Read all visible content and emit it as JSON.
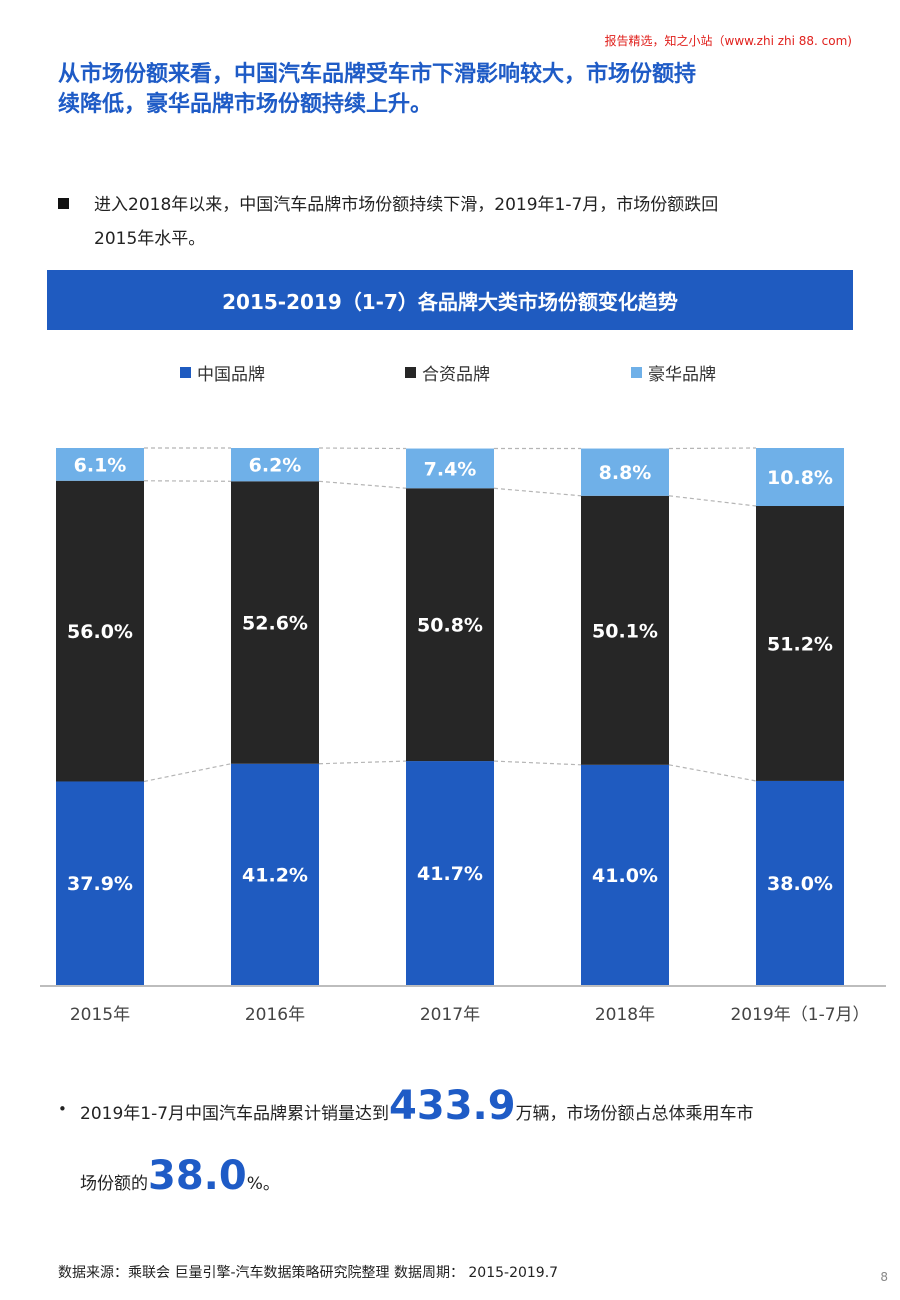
{
  "watermark": "报告精选，知之小站（www.zhi zhi 88. com)",
  "headline": {
    "line1": "从市场份额来看，中国汽车品牌受车市下滑影响较大，市场份额持",
    "line2": "续降低，豪华品牌市场份额持续上升。"
  },
  "bullet1": {
    "line1": "进入2018年以来，中国汽车品牌市场份额持续下滑，2019年1-7月，市场份额跌回",
    "line2": "2015年水平。"
  },
  "chart_data": {
    "type": "bar",
    "stacked": true,
    "title": "2015-2019（1-7）各品牌大类市场份额变化趋势",
    "categories": [
      "2015年",
      "2016年",
      "2017年",
      "2018年",
      "2019年（1-7月）"
    ],
    "series": [
      {
        "name": "中国品牌",
        "color": "#1f5bc0",
        "values": [
          37.9,
          41.2,
          41.7,
          41.0,
          38.0
        ],
        "labels": [
          "37.9%",
          "41.2%",
          "41.7%",
          "41.0%",
          "38.0%"
        ]
      },
      {
        "name": "合资品牌",
        "color": "#262626",
        "values": [
          56.0,
          52.6,
          50.8,
          50.1,
          51.2
        ],
        "labels": [
          "56.0%",
          "52.6%",
          "50.8%",
          "50.1%",
          "51.2%"
        ]
      },
      {
        "name": "豪华品牌",
        "color": "#6fb0e8",
        "values": [
          6.1,
          6.2,
          7.4,
          8.8,
          10.8
        ],
        "labels": [
          "6.1%",
          "6.2%",
          "7.4%",
          "8.8%",
          "10.8%"
        ]
      }
    ],
    "ylim": [
      0,
      100
    ],
    "legend_position": "top",
    "grid": false,
    "connector_lines": "dashed"
  },
  "bottom": {
    "pre1": "2019年1-7月中国汽车品牌累计销量达到",
    "num1": "433.9",
    "post1": "万辆，市场份额占总体乘用车市",
    "pre2": "场份额的",
    "num2": "38.0",
    "post2": "%。"
  },
  "source": "数据来源：乘联会  巨量引擎-汽车数据策略研究院整理  数据周期：  2015-2019.7",
  "page_number": "8"
}
